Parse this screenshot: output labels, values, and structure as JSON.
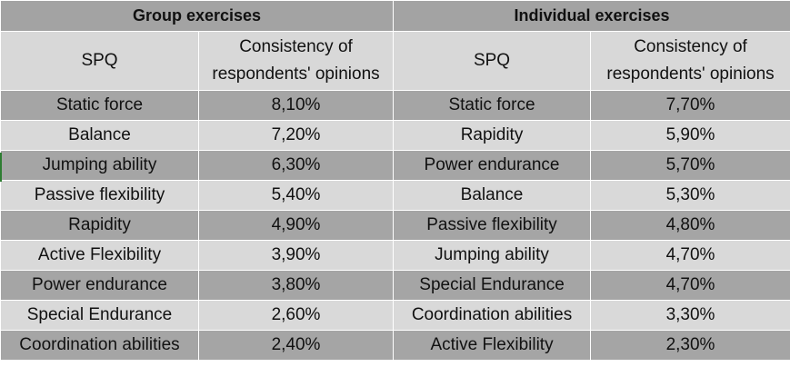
{
  "group": {
    "title": "Group exercises",
    "col_spq": "SPQ",
    "col_consistency": "Consistency of respondents' opinions"
  },
  "individual": {
    "title": "Individual exercises",
    "col_spq": "SPQ",
    "col_consistency": "Consistency of respondents' opinions"
  },
  "rows": [
    {
      "group_spq": "Static force",
      "group_value": "8,10%",
      "ind_spq": "Static force",
      "ind_value": "7,70%"
    },
    {
      "group_spq": "Balance",
      "group_value": "7,20%",
      "ind_spq": "Rapidity",
      "ind_value": "5,90%"
    },
    {
      "group_spq": "Jumping ability",
      "group_value": "6,30%",
      "ind_spq": "Power endurance",
      "ind_value": "5,70%"
    },
    {
      "group_spq": "Passive flexibility",
      "group_value": "5,40%",
      "ind_spq": "Balance",
      "ind_value": "5,30%"
    },
    {
      "group_spq": "Rapidity",
      "group_value": "4,90%",
      "ind_spq": "Passive flexibility",
      "ind_value": "4,80%"
    },
    {
      "group_spq": "Active Flexibility",
      "group_value": "3,90%",
      "ind_spq": "Jumping ability",
      "ind_value": "4,70%"
    },
    {
      "group_spq": "Power endurance",
      "group_value": "3,80%",
      "ind_spq": "Special Endurance",
      "ind_value": "4,70%"
    },
    {
      "group_spq": "Special Endurance",
      "group_value": "2,60%",
      "ind_spq": "Coordination abilities",
      "ind_value": "3,30%"
    },
    {
      "group_spq": "Coordination abilities",
      "group_value": "2,40%",
      "ind_spq": "Active Flexibility",
      "ind_value": "2,30%"
    }
  ],
  "colors": {
    "dark_row": "#a5a5a5",
    "light_row": "#d9d9d9",
    "header": "#d8d8d8",
    "title": "#a3a3a3"
  }
}
